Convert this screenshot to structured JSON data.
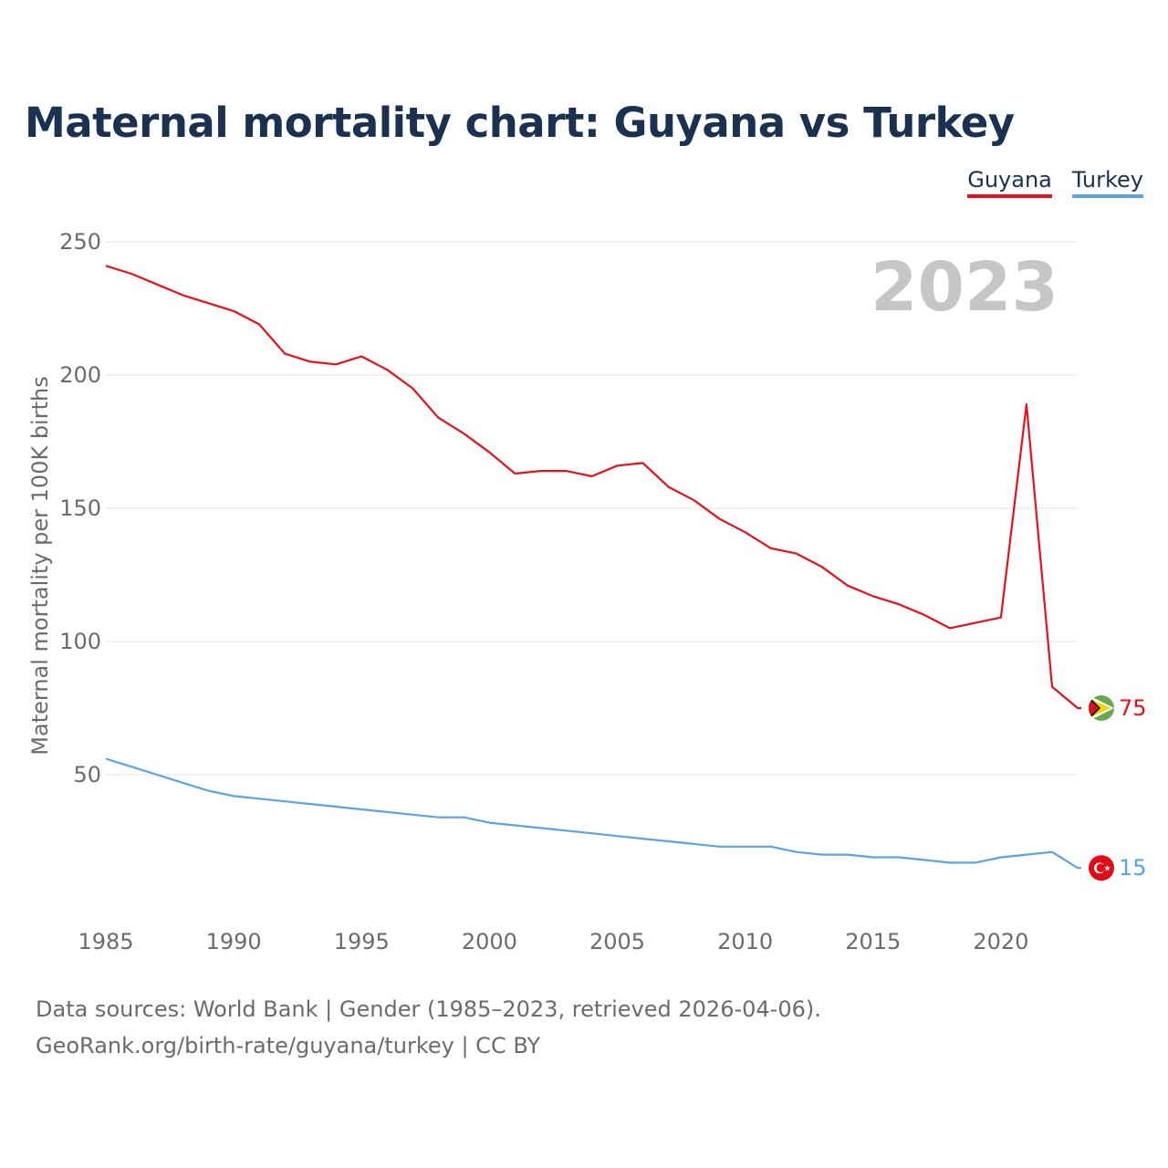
{
  "chart_data": {
    "type": "line",
    "title": "Maternal mortality chart: Guyana vs Turkey",
    "xlabel": "",
    "ylabel": "Maternal mortality per 100K births",
    "year_label": "2023",
    "xlim": [
      1985,
      2023
    ],
    "ylim": [
      0,
      250
    ],
    "xticks": [
      1985,
      1990,
      1995,
      2000,
      2005,
      2010,
      2015,
      2020
    ],
    "yticks": [
      50,
      100,
      150,
      200,
      250
    ],
    "x": [
      1985,
      1986,
      1987,
      1988,
      1989,
      1990,
      1991,
      1992,
      1993,
      1994,
      1995,
      1996,
      1997,
      1998,
      1999,
      2000,
      2001,
      2002,
      2003,
      2004,
      2005,
      2006,
      2007,
      2008,
      2009,
      2010,
      2011,
      2012,
      2013,
      2014,
      2015,
      2016,
      2017,
      2018,
      2019,
      2020,
      2021,
      2022,
      2023
    ],
    "series": [
      {
        "name": "Guyana",
        "color": "#e8101a",
        "end_label": "75",
        "values": [
          241,
          238,
          234,
          230,
          227,
          224,
          219,
          208,
          205,
          204,
          207,
          202,
          195,
          184,
          178,
          171,
          163,
          164,
          164,
          162,
          166,
          167,
          158,
          153,
          146,
          141,
          135,
          133,
          128,
          121,
          117,
          114,
          110,
          105,
          107,
          109,
          189,
          83,
          75
        ]
      },
      {
        "name": "Turkey",
        "color": "#5aa4e6",
        "end_label": "15",
        "values": [
          56,
          53,
          50,
          47,
          44,
          42,
          41,
          40,
          39,
          38,
          37,
          36,
          35,
          34,
          34,
          32,
          31,
          30,
          29,
          28,
          27,
          26,
          25,
          24,
          23,
          23,
          23,
          21,
          20,
          20,
          19,
          19,
          18,
          17,
          17,
          19,
          20,
          21,
          15
        ]
      }
    ]
  },
  "footer": {
    "line1": "Data sources: World Bank | Gender (1985–2023, retrieved 2026-04-06).",
    "line2": "GeoRank.org/birth-rate/guyana/turkey | CC BY"
  }
}
